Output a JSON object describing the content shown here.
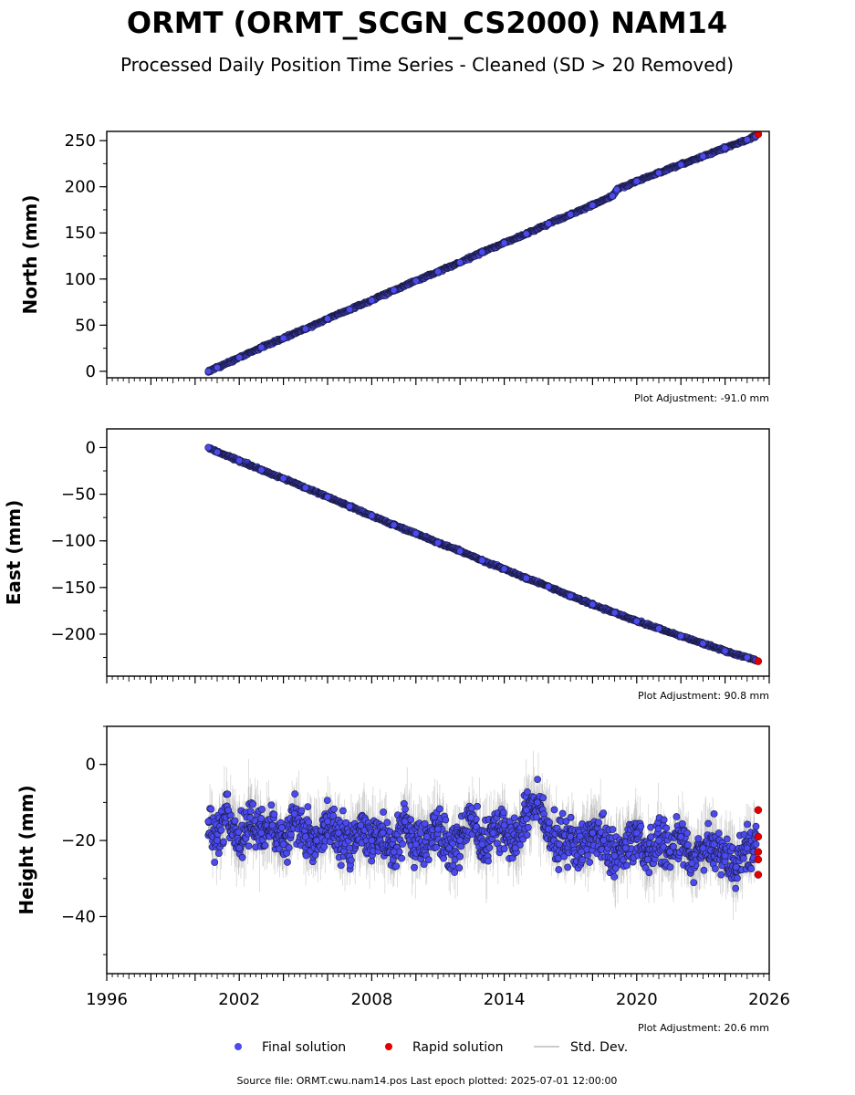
{
  "header": {
    "title": "ORMT (ORMT_SCGN_CS2000) NAM14",
    "subtitle": "Processed Daily Position Time Series - Cleaned (SD > 20 Removed)"
  },
  "legend": {
    "final_label": "Final solution",
    "rapid_label": "Rapid solution",
    "std_label": "Std. Dev."
  },
  "footer": {
    "source": "Source file: ORMT.cwu.nam14.pos  Last epoch plotted: 2025-07-01 12:00:00"
  },
  "colors": {
    "final": "#4a4af0",
    "final_edge": "#1a1a40",
    "rapid": "#e00000",
    "std": "#8a8a8a"
  },
  "chart_data": [
    {
      "type": "scatter",
      "ylabel": "North (mm)",
      "adjustment": "Plot Adjustment: -91.0 mm",
      "xlim": [
        1996,
        2026
      ],
      "ylim": [
        -7,
        260
      ],
      "yticks": [
        0,
        50,
        100,
        150,
        200,
        250
      ],
      "ytick_labels": [
        "0",
        "50",
        "100",
        "150",
        "200",
        "250"
      ],
      "series": [
        {
          "name": "Final solution",
          "x": [
            2000.6,
            2001.0,
            2002.0,
            2003.0,
            2004.0,
            2005.0,
            2006.0,
            2007.0,
            2008.0,
            2009.0,
            2010.0,
            2011.0,
            2012.0,
            2013.0,
            2014.0,
            2015.0,
            2016.0,
            2017.0,
            2018.0,
            2018.9,
            2019.1,
            2020.0,
            2021.0,
            2022.0,
            2023.0,
            2024.0,
            2025.0,
            2025.4
          ],
          "y": [
            0,
            4,
            15,
            26,
            36,
            46,
            57,
            67,
            77,
            88,
            98,
            108,
            118,
            129,
            139,
            149,
            160,
            170,
            180,
            190,
            197,
            206,
            215,
            224,
            233,
            242,
            251,
            255
          ]
        },
        {
          "name": "Rapid solution",
          "x": [
            2025.5
          ],
          "y": [
            257
          ]
        }
      ]
    },
    {
      "type": "scatter",
      "ylabel": "East (mm)",
      "adjustment": "Plot Adjustment: 90.8 mm",
      "xlim": [
        1996,
        2026
      ],
      "ylim": [
        -245,
        20
      ],
      "yticks": [
        0,
        -50,
        -100,
        -150,
        -200
      ],
      "ytick_labels": [
        "0",
        "−50",
        "−100",
        "−150",
        "−200"
      ],
      "series": [
        {
          "name": "Final solution",
          "x": [
            2000.6,
            2001.0,
            2002.0,
            2003.0,
            2004.0,
            2005.0,
            2006.0,
            2007.0,
            2008.0,
            2009.0,
            2010.0,
            2011.0,
            2012.0,
            2013.0,
            2014.0,
            2015.0,
            2016.0,
            2017.0,
            2018.0,
            2019.0,
            2020.0,
            2021.0,
            2022.0,
            2023.0,
            2024.0,
            2025.0,
            2025.4
          ],
          "y": [
            0,
            -5,
            -14,
            -24,
            -33,
            -43,
            -53,
            -63,
            -73,
            -83,
            -92,
            -102,
            -111,
            -121,
            -130,
            -140,
            -149,
            -159,
            -168,
            -177,
            -186,
            -194,
            -202,
            -210,
            -218,
            -225,
            -228
          ]
        },
        {
          "name": "Rapid solution",
          "x": [
            2025.5
          ],
          "y": [
            -229
          ]
        }
      ]
    },
    {
      "type": "scatter",
      "ylabel": "Height (mm)",
      "adjustment": "Plot Adjustment: 20.6 mm",
      "xlim": [
        1996,
        2026
      ],
      "ylim": [
        -55,
        10
      ],
      "yticks": [
        0,
        -20,
        -40
      ],
      "ytick_labels": [
        "0",
        "−20",
        "−40"
      ],
      "xticks": [
        1996,
        2002,
        2008,
        2014,
        2020,
        2026
      ],
      "xtick_labels": [
        "1996",
        "2002",
        "2008",
        "2014",
        "2020",
        "2026"
      ],
      "series": [
        {
          "name": "Final solution",
          "x": [
            2000.6,
            2001.0,
            2001.5,
            2002.0,
            2002.5,
            2003.0,
            2003.5,
            2004.0,
            2004.5,
            2005.0,
            2005.5,
            2006.0,
            2006.5,
            2007.0,
            2007.5,
            2008.0,
            2008.5,
            2009.0,
            2009.5,
            2010.0,
            2010.5,
            2011.0,
            2011.5,
            2012.0,
            2012.5,
            2013.0,
            2013.5,
            2014.0,
            2014.5,
            2015.0,
            2015.5,
            2016.0,
            2016.5,
            2017.0,
            2017.5,
            2018.0,
            2018.5,
            2019.0,
            2019.5,
            2020.0,
            2020.5,
            2021.0,
            2021.5,
            2022.0,
            2022.5,
            2023.0,
            2023.5,
            2024.0,
            2024.5,
            2025.0,
            2025.4
          ],
          "y": [
            -15,
            -20,
            -12,
            -22,
            -14,
            -18,
            -16,
            -21,
            -13,
            -19,
            -20,
            -15,
            -18,
            -22,
            -16,
            -20,
            -18,
            -23,
            -15,
            -21,
            -19,
            -17,
            -22,
            -20,
            -14,
            -21,
            -18,
            -16,
            -22,
            -12,
            -10,
            -17,
            -21,
            -19,
            -23,
            -18,
            -20,
            -24,
            -22,
            -18,
            -25,
            -20,
            -23,
            -19,
            -26,
            -22,
            -21,
            -24,
            -27,
            -22,
            -21
          ]
        },
        {
          "name": "Rapid solution",
          "x": [
            2025.5,
            2025.5,
            2025.5,
            2025.5,
            2025.5
          ],
          "y": [
            -12,
            -19,
            -23,
            -25,
            -29
          ]
        }
      ]
    }
  ]
}
